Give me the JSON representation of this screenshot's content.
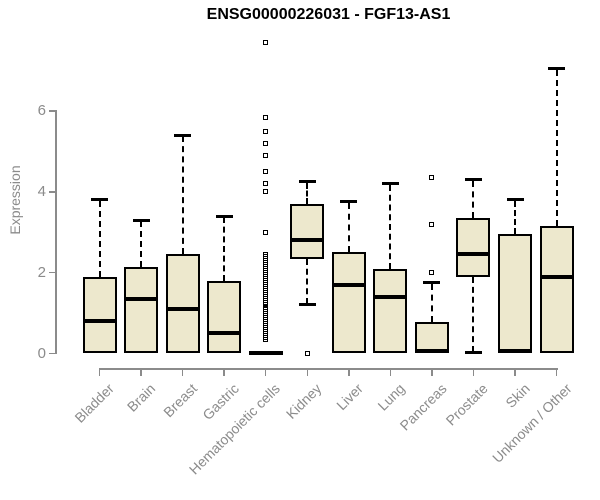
{
  "page_title": "ENSG00000226031 - FGF13-AS1",
  "chart_data": {
    "type": "boxplot",
    "title": "ENSG00000226031 - FGF13-AS1",
    "xlabel": "",
    "ylabel": "Expression",
    "ylim": [
      0,
      7.9
    ],
    "yticks": [
      0,
      2,
      4,
      6
    ],
    "grid": false,
    "legend": "none",
    "categories": [
      "Bladder",
      "Brain",
      "Breast",
      "Gastric",
      "Hematopoietic cells",
      "Kidney",
      "Liver",
      "Lung",
      "Pancreas",
      "Prostate",
      "Skin",
      "Unknown / Other"
    ],
    "series": [
      {
        "label": "Bladder",
        "q1": 0,
        "median": 0.8,
        "q3": 1.9,
        "whisker_low": 0,
        "whisker_high": 3.8,
        "outliers": []
      },
      {
        "label": "Brain",
        "q1": 0,
        "median": 1.35,
        "q3": 2.15,
        "whisker_low": 0,
        "whisker_high": 3.3,
        "outliers": []
      },
      {
        "label": "Breast",
        "q1": 0,
        "median": 1.1,
        "q3": 2.45,
        "whisker_low": 0,
        "whisker_high": 5.4,
        "outliers": []
      },
      {
        "label": "Gastric",
        "q1": 0,
        "median": 0.5,
        "q3": 1.8,
        "whisker_low": 0,
        "whisker_high": 3.4,
        "outliers": []
      },
      {
        "label": "Hematopoietic cells",
        "q1": 0,
        "median": 0.02,
        "q3": 0.05,
        "whisker_low": 0,
        "whisker_high": 0.05,
        "outliers": [
          7.7,
          5.85,
          5.5,
          5.2,
          4.9,
          4.5,
          4.2,
          4.0,
          3.0,
          2.45,
          2.4,
          2.35,
          2.3,
          2.25,
          2.2,
          2.15,
          2.1,
          2.05,
          2.0,
          1.95,
          1.9,
          1.85,
          1.8,
          1.75,
          1.7,
          1.65,
          1.6,
          1.55,
          1.5,
          1.45,
          1.4,
          1.35,
          1.3,
          1.25,
          1.2,
          1.15,
          1.1,
          1.05,
          1.0,
          0.95,
          0.9,
          0.85,
          0.8,
          0.75,
          0.7,
          0.65,
          0.6,
          0.55,
          0.5,
          0.45,
          0.4,
          0.35
        ]
      },
      {
        "label": "Kidney",
        "q1": 2.35,
        "median": 2.8,
        "q3": 3.7,
        "whisker_low": 1.2,
        "whisker_high": 4.25,
        "outliers": [
          0
        ]
      },
      {
        "label": "Liver",
        "q1": 0,
        "median": 1.7,
        "q3": 2.5,
        "whisker_low": 0,
        "whisker_high": 3.75,
        "outliers": []
      },
      {
        "label": "Lung",
        "q1": 0,
        "median": 1.4,
        "q3": 2.1,
        "whisker_low": 0,
        "whisker_high": 4.2,
        "outliers": []
      },
      {
        "label": "Pancreas",
        "q1": 0,
        "median": 0.05,
        "q3": 0.78,
        "whisker_low": 0,
        "whisker_high": 1.75,
        "outliers": [
          4.35,
          3.2,
          2.0
        ]
      },
      {
        "label": "Prostate",
        "q1": 1.9,
        "median": 2.45,
        "q3": 3.35,
        "whisker_low": 0.02,
        "whisker_high": 4.3,
        "outliers": []
      },
      {
        "label": "Skin",
        "q1": 0,
        "median": 0.05,
        "q3": 2.95,
        "whisker_low": 0,
        "whisker_high": 3.8,
        "outliers": []
      },
      {
        "label": "Unknown / Other",
        "q1": 0,
        "median": 1.9,
        "q3": 3.15,
        "whisker_low": 0,
        "whisker_high": 7.05,
        "outliers": []
      }
    ],
    "colors": {
      "box_fill": "#ede8cd",
      "box_stroke": "#000000",
      "median": "#000000",
      "whisker": "#000000",
      "outlier": "#000000",
      "axis": "#8b8b8b",
      "tick_label": "#8b8b8b",
      "category_label": "#8b8b8b",
      "title": "#000000",
      "background": "#ffffff"
    }
  }
}
